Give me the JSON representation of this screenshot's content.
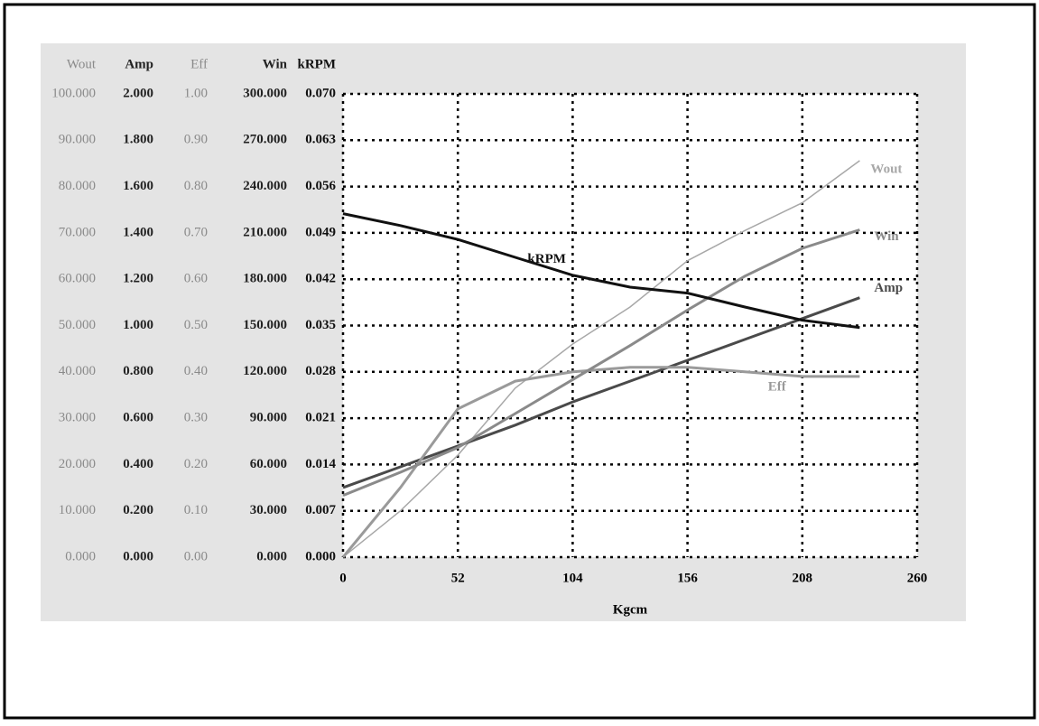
{
  "chart_data": {
    "type": "line",
    "x_label": "Kgcm",
    "xlim": [
      0,
      260
    ],
    "xticks": [
      0,
      52,
      104,
      156,
      208,
      260
    ],
    "grid": true,
    "x": [
      0,
      26,
      52,
      78,
      104,
      130,
      156,
      182,
      208,
      234
    ],
    "axes": [
      {
        "title": "Wout",
        "ylim": [
          0,
          100
        ],
        "yticks": [
          {
            "value": 0,
            "label": "0.000"
          },
          {
            "value": 10,
            "label": "10.000"
          },
          {
            "value": 20,
            "label": "20.000"
          },
          {
            "value": 30,
            "label": "30.000"
          },
          {
            "value": 40,
            "label": "40.000"
          },
          {
            "value": 50,
            "label": "50.000"
          },
          {
            "value": 60,
            "label": "60.000"
          },
          {
            "value": 70,
            "label": "70.000"
          },
          {
            "value": 80,
            "label": "80.000"
          },
          {
            "value": 90,
            "label": "90.000"
          },
          {
            "value": 100,
            "label": "100.000"
          }
        ],
        "series": {
          "name": "Wout",
          "color": "#a8a8a8",
          "values": [
            0,
            10,
            22,
            36.5,
            46,
            54,
            64,
            70.5,
            76.5,
            85.6
          ]
        }
      },
      {
        "title": "Amp",
        "ylim": [
          0,
          2
        ],
        "yticks": [
          {
            "value": 0,
            "label": "0.000"
          },
          {
            "value": 0.2,
            "label": "0.200"
          },
          {
            "value": 0.4,
            "label": "0.400"
          },
          {
            "value": 0.6,
            "label": "0.600"
          },
          {
            "value": 0.8,
            "label": "0.800"
          },
          {
            "value": 1,
            "label": "1.000"
          },
          {
            "value": 1.2,
            "label": "1.200"
          },
          {
            "value": 1.4,
            "label": "1.400"
          },
          {
            "value": 1.6,
            "label": "1.600"
          },
          {
            "value": 1.8,
            "label": "1.800"
          },
          {
            "value": 2,
            "label": "2.000"
          }
        ],
        "series": {
          "name": "Amp",
          "color": "#4a4a4a",
          "values": [
            0.3,
            0.39,
            0.48,
            0.57,
            0.67,
            0.76,
            0.85,
            0.94,
            1.03,
            1.12
          ]
        }
      },
      {
        "title": "Eff",
        "ylim": [
          0,
          1
        ],
        "yticks": [
          {
            "value": 0,
            "label": "0.00"
          },
          {
            "value": 0.1,
            "label": "0.10"
          },
          {
            "value": 0.2,
            "label": "0.20"
          },
          {
            "value": 0.3,
            "label": "0.30"
          },
          {
            "value": 0.4,
            "label": "0.40"
          },
          {
            "value": 0.5,
            "label": "0.50"
          },
          {
            "value": 0.6,
            "label": "0.60"
          },
          {
            "value": 0.7,
            "label": "0.70"
          },
          {
            "value": 0.8,
            "label": "0.80"
          },
          {
            "value": 0.9,
            "label": "0.90"
          },
          {
            "value": 1,
            "label": "1.00"
          }
        ],
        "series": {
          "name": "Eff",
          "color": "#9a9a9a",
          "values": [
            0,
            0.15,
            0.32,
            0.38,
            0.4,
            0.41,
            0.41,
            0.4,
            0.39,
            0.39
          ]
        }
      },
      {
        "title": "Win",
        "ylim": [
          0,
          300
        ],
        "yticks": [
          {
            "value": 0,
            "label": "0.000"
          },
          {
            "value": 30,
            "label": "30.000"
          },
          {
            "value": 60,
            "label": "60.000"
          },
          {
            "value": 90,
            "label": "90.000"
          },
          {
            "value": 120,
            "label": "120.000"
          },
          {
            "value": 150,
            "label": "150.000"
          },
          {
            "value": 180,
            "label": "180.000"
          },
          {
            "value": 210,
            "label": "210.000"
          },
          {
            "value": 240,
            "label": "240.000"
          },
          {
            "value": 270,
            "label": "270.000"
          },
          {
            "value": 300,
            "label": "300.000"
          }
        ],
        "series": {
          "name": "Win",
          "color": "#8a8a8a",
          "values": [
            40,
            55,
            71,
            93,
            115,
            137,
            160,
            182,
            200,
            212
          ]
        }
      },
      {
        "title": "kRPM",
        "ylim": [
          0,
          0.07
        ],
        "yticks": [
          {
            "value": 0,
            "label": "0.000"
          },
          {
            "value": 0.007,
            "label": "0.007"
          },
          {
            "value": 0.014,
            "label": "0.014"
          },
          {
            "value": 0.021,
            "label": "0.021"
          },
          {
            "value": 0.028,
            "label": "0.028"
          },
          {
            "value": 0.035,
            "label": "0.035"
          },
          {
            "value": 0.042,
            "label": "0.042"
          },
          {
            "value": 0.049,
            "label": "0.049"
          },
          {
            "value": 0.056,
            "label": "0.056"
          },
          {
            "value": 0.063,
            "label": "0.063"
          },
          {
            "value": 0.07,
            "label": "0.070"
          }
        ],
        "series": {
          "name": "kRPM",
          "color": "#111111",
          "values": [
            0.0519,
            0.0501,
            0.048,
            0.0453,
            0.0426,
            0.0408,
            0.0399,
            0.0378,
            0.0358,
            0.0347
          ]
        }
      }
    ]
  }
}
